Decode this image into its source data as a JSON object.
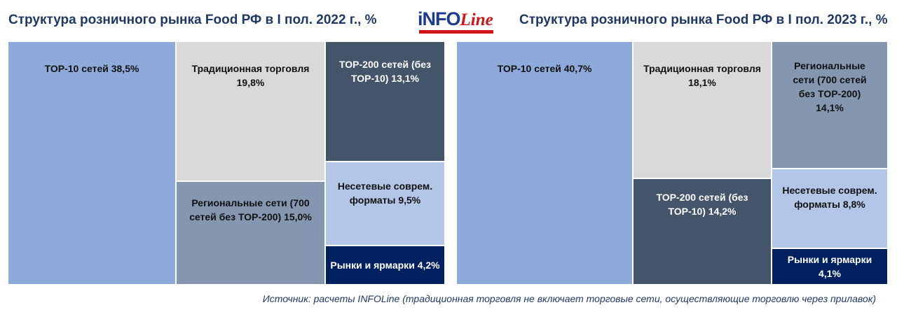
{
  "header": {
    "title_left": "Структура розничного рынка Food РФ в I пол. 2022 г., %",
    "title_right": "Структура розничного рынка Food РФ в I пол. 2023 г., %",
    "logo_text_main": "iNFO",
    "logo_text_accent": "Line"
  },
  "chart_data": [
    {
      "type": "treemap",
      "title": "Структура розничного рынка Food РФ в I пол. 2022 г., %",
      "items": [
        {
          "label": "TOP-10 сетей 38,5%",
          "name": "TOP-10 сетей",
          "value": 38.5,
          "color": "#8eaadb"
        },
        {
          "label": "Традиционная торговля\n19,8%",
          "name": "Традиционная торговля",
          "value": 19.8,
          "color": "#d9d9d9"
        },
        {
          "label": "Региональные сети (700\nсетей без TOP-200) 15,0%",
          "name": "Региональные сети (700 сетей без TOP-200)",
          "value": 15.0,
          "color": "#8496b0"
        },
        {
          "label": "TOP-200 сетей (без\nTOP-10) 13,1%",
          "name": "TOP-200 сетей (без TOP-10)",
          "value": 13.1,
          "color": "#44546a"
        },
        {
          "label": "Несетевые соврем.\nформаты 9,5%",
          "name": "Несетевые соврем. форматы",
          "value": 9.5,
          "color": "#b4c6e7"
        },
        {
          "label": "Рынки и ярмарки 4,2%",
          "name": "Рынки и ярмарки",
          "value": 4.2,
          "color": "#002060"
        }
      ]
    },
    {
      "type": "treemap",
      "title": "Структура розничного рынка Food РФ в I пол. 2023 г., %",
      "items": [
        {
          "label": "TOP-10 сетей 40,7%",
          "name": "TOP-10 сетей",
          "value": 40.7,
          "color": "#8eaadb"
        },
        {
          "label": "Традиционная торговля\n18,1%",
          "name": "Традиционная торговля",
          "value": 18.1,
          "color": "#d9d9d9"
        },
        {
          "label": "TOP-200 сетей (без\nTOP-10) 14,2%",
          "name": "TOP-200 сетей (без TOP-10)",
          "value": 14.2,
          "color": "#44546a"
        },
        {
          "label": "Региональные\nсети (700 сетей\nбез TOP-200)\n14,1%",
          "name": "Региональные сети (700 сетей без TOP-200)",
          "value": 14.1,
          "color": "#8496b0"
        },
        {
          "label": "Несетевые соврем.\nформаты 8,8%",
          "name": "Несетевые соврем. форматы",
          "value": 8.8,
          "color": "#b4c6e7"
        },
        {
          "label": "Рынки и ярмарки 4,1%",
          "name": "Рынки и ярмарки",
          "value": 4.1,
          "color": "#002060"
        }
      ]
    }
  ],
  "footer": {
    "source": "Источник: расчеты INFOLine (традиционная торговля не включает торговые сети, осуществляющие торговлю через прилавок)"
  }
}
